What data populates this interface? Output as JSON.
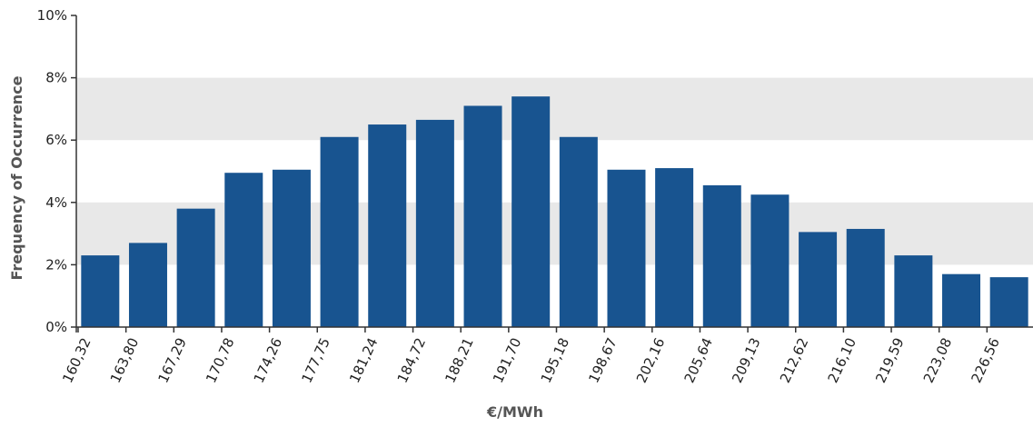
{
  "chart_data": {
    "type": "bar",
    "title": "",
    "xlabel": "€/MWh",
    "ylabel": "Frequency of Occurrence",
    "categories": [
      "160,32",
      "163,80",
      "167,29",
      "170,78",
      "174,26",
      "177,75",
      "181,24",
      "184,72",
      "188,21",
      "191,70",
      "195,18",
      "198,67",
      "202,16",
      "205,64",
      "209,13",
      "212,62",
      "216,10",
      "219,59",
      "223,08",
      "226,56"
    ],
    "values": [
      2.3,
      2.7,
      3.8,
      4.95,
      5.05,
      6.1,
      6.5,
      6.65,
      7.1,
      7.4,
      6.1,
      5.05,
      5.1,
      4.55,
      4.25,
      3.05,
      3.15,
      2.3,
      1.7,
      1.6
    ],
    "ylim": [
      0,
      10
    ],
    "yticks": [
      "0%",
      "2%",
      "4%",
      "6%",
      "8%",
      "10%"
    ],
    "bar_color": "#185490",
    "band_color": "#e8e8e8",
    "grid": true
  }
}
